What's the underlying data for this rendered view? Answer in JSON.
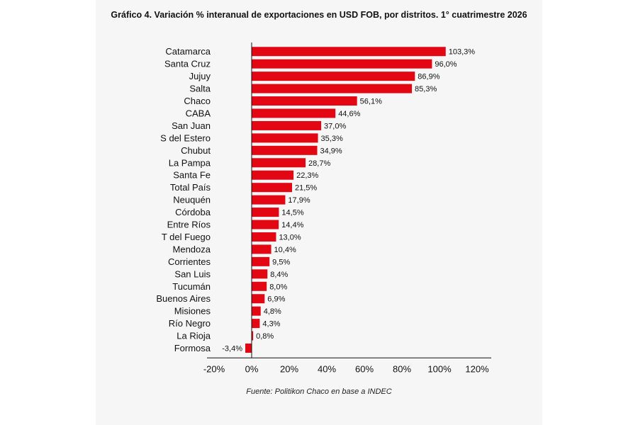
{
  "chart_data": {
    "type": "bar",
    "orientation": "horizontal",
    "title": "Gráfico 4. Variación % interanual de exportaciones en USD FOB, por distritos. 1° cuatrimestre 2026",
    "source": "Fuente: Politikon Chaco en base a INDEC",
    "categories": [
      "Catamarca",
      "Santa Cruz",
      "Jujuy",
      "Salta",
      "Chaco",
      "CABA",
      "San Juan",
      "S del Estero",
      "Chubut",
      "La Pampa",
      "Santa Fe",
      "Total País",
      "Neuquén",
      "Córdoba",
      "Entre Ríos",
      "T del Fuego",
      "Mendoza",
      "Corrientes",
      "San Luis",
      "Tucumán",
      "Buenos Aires",
      "Misiones",
      "Río Negro",
      "La Rioja",
      "Formosa"
    ],
    "values": [
      103.3,
      96.0,
      86.9,
      85.3,
      56.1,
      44.6,
      37.0,
      35.3,
      34.9,
      28.7,
      22.3,
      21.5,
      17.9,
      14.5,
      14.4,
      13.0,
      10.4,
      9.5,
      8.4,
      8.0,
      6.9,
      4.8,
      4.3,
      0.8,
      -3.4
    ],
    "value_labels": [
      "103,3%",
      "96,0%",
      "86,9%",
      "85,3%",
      "56,1%",
      "44,6%",
      "37,0%",
      "35,3%",
      "34,9%",
      "28,7%",
      "22,3%",
      "21,5%",
      "17,9%",
      "14,5%",
      "14,4%",
      "13,0%",
      "10,4%",
      "9,5%",
      "8,4%",
      "8,0%",
      "6,9%",
      "4,8%",
      "4,3%",
      "0,8%",
      "-3,4%"
    ],
    "xlim": [
      -20,
      120
    ],
    "xticks": [
      -20,
      0,
      20,
      40,
      60,
      80,
      100,
      120
    ],
    "xtick_labels": [
      "-20%",
      "0%",
      "20%",
      "40%",
      "60%",
      "80%",
      "100%",
      "120%"
    ],
    "grid": false,
    "bar_color": "#e30613"
  }
}
